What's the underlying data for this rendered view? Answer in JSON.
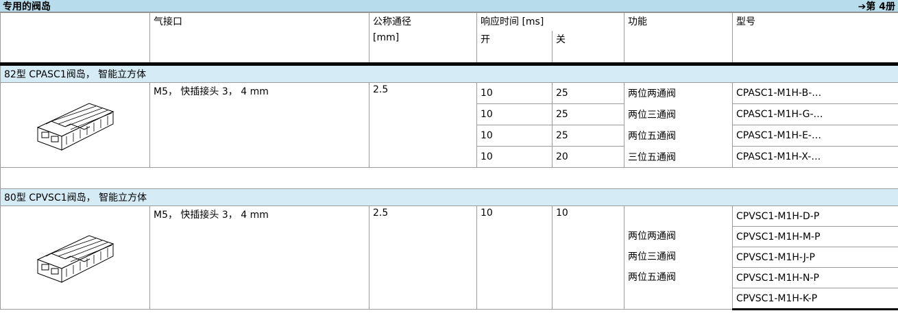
{
  "title": "专用的阀岛",
  "volume_link": "➔第 4册",
  "headers": {
    "port": "气接口",
    "nominal_bore": "公称通径",
    "nominal_bore_unit": "[mm]",
    "response_time": "响应时间 [ms]",
    "open": "开",
    "close": "关",
    "function": "功能",
    "model": "型号"
  },
  "sections": [
    {
      "title": "82型 CPASC1阀岛， 智能立方体",
      "port": "M5， 快插接头 3， 4 mm",
      "bore": "2.5",
      "response": [
        [
          "10",
          "25"
        ],
        [
          "10",
          "25"
        ],
        [
          "10",
          "25"
        ],
        [
          "10",
          "20"
        ]
      ],
      "functions": [
        "两位两通阀",
        "两位三通阀",
        "两位五通阀",
        "三位五通阀"
      ],
      "models": [
        "CPASC1-M1H-B-…",
        "CPASC1-M1H-G-…",
        "CPASC1-M1H-E-…",
        "CPASC1-M1H-X-…"
      ]
    },
    {
      "title": "80型 CPVSC1阀岛， 智能立方体",
      "port": "M5， 快插接头 3， 4 mm",
      "bore": "2.5",
      "response": [
        [
          "10",
          "10"
        ]
      ],
      "functions": [
        "两位两通阀",
        "两位三通阀",
        "两位五通阀"
      ],
      "models": [
        "CPVSC1-M1H-D-P",
        "CPVSC1-M1H-M-P",
        "CPVSC1-M1H-J-P",
        "CPVSC1-M1H-N-P",
        "CPVSC1-M1H-K-P"
      ]
    }
  ]
}
